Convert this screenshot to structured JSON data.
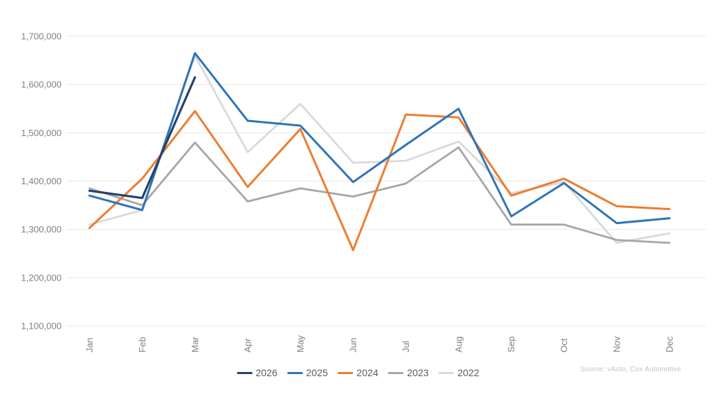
{
  "chart_data": {
    "type": "line",
    "title": "",
    "xlabel": "",
    "ylabel": "",
    "categories": [
      "Jan",
      "Feb",
      "Mar",
      "Apr",
      "May",
      "Jun",
      "Jul",
      "Aug",
      "Sep",
      "Oct",
      "Nov",
      "Dec"
    ],
    "series": [
      {
        "name": "2026",
        "color": "#26436d",
        "stroke_width": 3.2,
        "values": [
          1380000,
          1365000,
          1615000,
          null,
          null,
          null,
          null,
          null,
          null,
          null,
          null,
          null
        ]
      },
      {
        "name": "2025",
        "color": "#2e75b6",
        "stroke_width": 3,
        "values": [
          1370000,
          1340000,
          1665000,
          1525000,
          1515000,
          1398000,
          1475000,
          1550000,
          1327000,
          1396000,
          1313000,
          1323000
        ]
      },
      {
        "name": "2024",
        "color": "#ed7d31",
        "stroke_width": 3,
        "values": [
          1303000,
          1405000,
          1545000,
          1388000,
          1508000,
          1257000,
          1538000,
          1532000,
          1370000,
          1405000,
          1348000,
          1342000
        ]
      },
      {
        "name": "2023",
        "color": "#a6a6a6",
        "stroke_width": 2.8,
        "values": [
          1385000,
          1350000,
          1480000,
          1358000,
          1385000,
          1368000,
          1395000,
          1470000,
          1310000,
          1310000,
          1278000,
          1272000
        ]
      },
      {
        "name": "2022",
        "color": "#d9d9d9",
        "stroke_width": 2.8,
        "values": [
          1310000,
          1340000,
          1660000,
          1460000,
          1560000,
          1438000,
          1442000,
          1482000,
          1375000,
          1398000,
          1272000,
          1292000
        ]
      }
    ],
    "draw_order": [
      "2022",
      "2023",
      "2024",
      "2025",
      "2026"
    ],
    "ylim": [
      1100000,
      1700000
    ],
    "ytick_step": 100000,
    "ytick_labels": [
      "1,700,000",
      "1,600,000",
      "1,500,000",
      "1,400,000",
      "1,300,000",
      "1,200,000",
      "1,100,000"
    ],
    "grid": true,
    "legend_position": "bottom"
  },
  "source_note": "Source: vAuto, Cox Automotive"
}
